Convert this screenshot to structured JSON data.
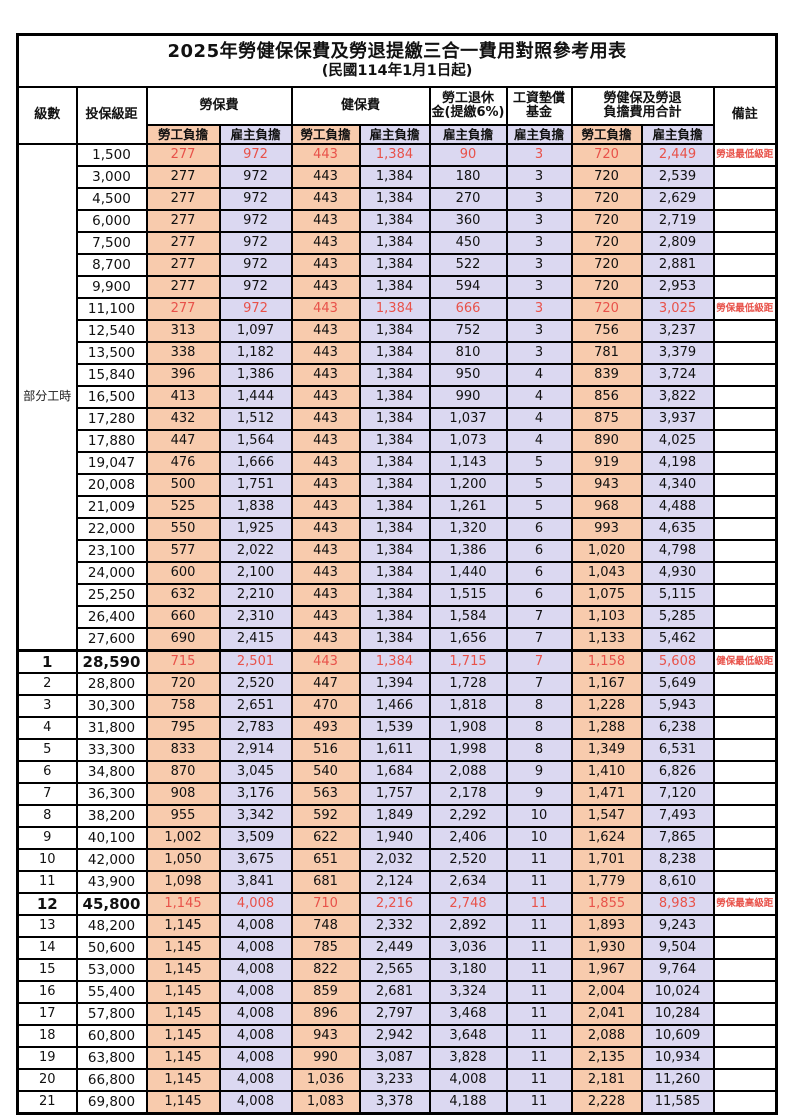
{
  "title": "2025年勞健保保費及勞退提繳三合一費用對照參考用表",
  "subtitle": "(民國114年1月1日起)",
  "columns": {
    "grade": "級數",
    "bracket": "投保級距",
    "labor": "勞保費",
    "health": "健保費",
    "pension": [
      "勞工退休",
      "金(提繳6%)"
    ],
    "fund": [
      "工資墊償",
      "基金"
    ],
    "total": [
      "勞健保及勞退",
      "負擔費用合計"
    ],
    "remark": "備註",
    "employee": "勞工負擔",
    "employer": "雇主負擔"
  },
  "part_time": {
    "label": "部分工時",
    "span": 23
  },
  "colors": {
    "employee_bg": "#F8CBAD",
    "employer_bg": "#DBD8F1",
    "highlight_text": "#E8524A",
    "border": "#000000"
  },
  "rows": [
    {
      "bracket": "1,500",
      "li_emp": "277",
      "li_er": "972",
      "hi_emp": "443",
      "hi_er": "1,384",
      "pension": "90",
      "fund": "3",
      "tot_emp": "720",
      "tot_er": "2,449",
      "remark": "勞退最低級距",
      "hl": true
    },
    {
      "bracket": "3,000",
      "li_emp": "277",
      "li_er": "972",
      "hi_emp": "443",
      "hi_er": "1,384",
      "pension": "180",
      "fund": "3",
      "tot_emp": "720",
      "tot_er": "2,539",
      "remark": ""
    },
    {
      "bracket": "4,500",
      "li_emp": "277",
      "li_er": "972",
      "hi_emp": "443",
      "hi_er": "1,384",
      "pension": "270",
      "fund": "3",
      "tot_emp": "720",
      "tot_er": "2,629",
      "remark": ""
    },
    {
      "bracket": "6,000",
      "li_emp": "277",
      "li_er": "972",
      "hi_emp": "443",
      "hi_er": "1,384",
      "pension": "360",
      "fund": "3",
      "tot_emp": "720",
      "tot_er": "2,719",
      "remark": ""
    },
    {
      "bracket": "7,500",
      "li_emp": "277",
      "li_er": "972",
      "hi_emp": "443",
      "hi_er": "1,384",
      "pension": "450",
      "fund": "3",
      "tot_emp": "720",
      "tot_er": "2,809",
      "remark": ""
    },
    {
      "bracket": "8,700",
      "li_emp": "277",
      "li_er": "972",
      "hi_emp": "443",
      "hi_er": "1,384",
      "pension": "522",
      "fund": "3",
      "tot_emp": "720",
      "tot_er": "2,881",
      "remark": ""
    },
    {
      "bracket": "9,900",
      "li_emp": "277",
      "li_er": "972",
      "hi_emp": "443",
      "hi_er": "1,384",
      "pension": "594",
      "fund": "3",
      "tot_emp": "720",
      "tot_er": "2,953",
      "remark": ""
    },
    {
      "bracket": "11,100",
      "li_emp": "277",
      "li_er": "972",
      "hi_emp": "443",
      "hi_er": "1,384",
      "pension": "666",
      "fund": "3",
      "tot_emp": "720",
      "tot_er": "3,025",
      "remark": "勞保最低級距",
      "hl": true
    },
    {
      "bracket": "12,540",
      "li_emp": "313",
      "li_er": "1,097",
      "hi_emp": "443",
      "hi_er": "1,384",
      "pension": "752",
      "fund": "3",
      "tot_emp": "756",
      "tot_er": "3,237",
      "remark": ""
    },
    {
      "bracket": "13,500",
      "li_emp": "338",
      "li_er": "1,182",
      "hi_emp": "443",
      "hi_er": "1,384",
      "pension": "810",
      "fund": "3",
      "tot_emp": "781",
      "tot_er": "3,379",
      "remark": ""
    },
    {
      "bracket": "15,840",
      "li_emp": "396",
      "li_er": "1,386",
      "hi_emp": "443",
      "hi_er": "1,384",
      "pension": "950",
      "fund": "4",
      "tot_emp": "839",
      "tot_er": "3,724",
      "remark": ""
    },
    {
      "bracket": "16,500",
      "li_emp": "413",
      "li_er": "1,444",
      "hi_emp": "443",
      "hi_er": "1,384",
      "pension": "990",
      "fund": "4",
      "tot_emp": "856",
      "tot_er": "3,822",
      "remark": ""
    },
    {
      "bracket": "17,280",
      "li_emp": "432",
      "li_er": "1,512",
      "hi_emp": "443",
      "hi_er": "1,384",
      "pension": "1,037",
      "fund": "4",
      "tot_emp": "875",
      "tot_er": "3,937",
      "remark": ""
    },
    {
      "bracket": "17,880",
      "li_emp": "447",
      "li_er": "1,564",
      "hi_emp": "443",
      "hi_er": "1,384",
      "pension": "1,073",
      "fund": "4",
      "tot_emp": "890",
      "tot_er": "4,025",
      "remark": ""
    },
    {
      "bracket": "19,047",
      "li_emp": "476",
      "li_er": "1,666",
      "hi_emp": "443",
      "hi_er": "1,384",
      "pension": "1,143",
      "fund": "5",
      "tot_emp": "919",
      "tot_er": "4,198",
      "remark": ""
    },
    {
      "bracket": "20,008",
      "li_emp": "500",
      "li_er": "1,751",
      "hi_emp": "443",
      "hi_er": "1,384",
      "pension": "1,200",
      "fund": "5",
      "tot_emp": "943",
      "tot_er": "4,340",
      "remark": ""
    },
    {
      "bracket": "21,009",
      "li_emp": "525",
      "li_er": "1,838",
      "hi_emp": "443",
      "hi_er": "1,384",
      "pension": "1,261",
      "fund": "5",
      "tot_emp": "968",
      "tot_er": "4,488",
      "remark": ""
    },
    {
      "bracket": "22,000",
      "li_emp": "550",
      "li_er": "1,925",
      "hi_emp": "443",
      "hi_er": "1,384",
      "pension": "1,320",
      "fund": "6",
      "tot_emp": "993",
      "tot_er": "4,635",
      "remark": ""
    },
    {
      "bracket": "23,100",
      "li_emp": "577",
      "li_er": "2,022",
      "hi_emp": "443",
      "hi_er": "1,384",
      "pension": "1,386",
      "fund": "6",
      "tot_emp": "1,020",
      "tot_er": "4,798",
      "remark": ""
    },
    {
      "bracket": "24,000",
      "li_emp": "600",
      "li_er": "2,100",
      "hi_emp": "443",
      "hi_er": "1,384",
      "pension": "1,440",
      "fund": "6",
      "tot_emp": "1,043",
      "tot_er": "4,930",
      "remark": ""
    },
    {
      "bracket": "25,250",
      "li_emp": "632",
      "li_er": "2,210",
      "hi_emp": "443",
      "hi_er": "1,384",
      "pension": "1,515",
      "fund": "6",
      "tot_emp": "1,075",
      "tot_er": "5,115",
      "remark": ""
    },
    {
      "bracket": "26,400",
      "li_emp": "660",
      "li_er": "2,310",
      "hi_emp": "443",
      "hi_er": "1,384",
      "pension": "1,584",
      "fund": "7",
      "tot_emp": "1,103",
      "tot_er": "5,285",
      "remark": ""
    },
    {
      "bracket": "27,600",
      "li_emp": "690",
      "li_er": "2,415",
      "hi_emp": "443",
      "hi_er": "1,384",
      "pension": "1,656",
      "fund": "7",
      "tot_emp": "1,133",
      "tot_er": "5,462",
      "remark": ""
    },
    {
      "grade": "1",
      "bracket": "28,590",
      "li_emp": "715",
      "li_er": "2,501",
      "hi_emp": "443",
      "hi_er": "1,384",
      "pension": "1,715",
      "fund": "7",
      "tot_emp": "1,158",
      "tot_er": "5,608",
      "remark": "健保最低級距",
      "hl": true,
      "bold": true,
      "section": true
    },
    {
      "grade": "2",
      "bracket": "28,800",
      "li_emp": "720",
      "li_er": "2,520",
      "hi_emp": "447",
      "hi_er": "1,394",
      "pension": "1,728",
      "fund": "7",
      "tot_emp": "1,167",
      "tot_er": "5,649",
      "remark": ""
    },
    {
      "grade": "3",
      "bracket": "30,300",
      "li_emp": "758",
      "li_er": "2,651",
      "hi_emp": "470",
      "hi_er": "1,466",
      "pension": "1,818",
      "fund": "8",
      "tot_emp": "1,228",
      "tot_er": "5,943",
      "remark": ""
    },
    {
      "grade": "4",
      "bracket": "31,800",
      "li_emp": "795",
      "li_er": "2,783",
      "hi_emp": "493",
      "hi_er": "1,539",
      "pension": "1,908",
      "fund": "8",
      "tot_emp": "1,288",
      "tot_er": "6,238",
      "remark": ""
    },
    {
      "grade": "5",
      "bracket": "33,300",
      "li_emp": "833",
      "li_er": "2,914",
      "hi_emp": "516",
      "hi_er": "1,611",
      "pension": "1,998",
      "fund": "8",
      "tot_emp": "1,349",
      "tot_er": "6,531",
      "remark": ""
    },
    {
      "grade": "6",
      "bracket": "34,800",
      "li_emp": "870",
      "li_er": "3,045",
      "hi_emp": "540",
      "hi_er": "1,684",
      "pension": "2,088",
      "fund": "9",
      "tot_emp": "1,410",
      "tot_er": "6,826",
      "remark": ""
    },
    {
      "grade": "7",
      "bracket": "36,300",
      "li_emp": "908",
      "li_er": "3,176",
      "hi_emp": "563",
      "hi_er": "1,757",
      "pension": "2,178",
      "fund": "9",
      "tot_emp": "1,471",
      "tot_er": "7,120",
      "remark": ""
    },
    {
      "grade": "8",
      "bracket": "38,200",
      "li_emp": "955",
      "li_er": "3,342",
      "hi_emp": "592",
      "hi_er": "1,849",
      "pension": "2,292",
      "fund": "10",
      "tot_emp": "1,547",
      "tot_er": "7,493",
      "remark": ""
    },
    {
      "grade": "9",
      "bracket": "40,100",
      "li_emp": "1,002",
      "li_er": "3,509",
      "hi_emp": "622",
      "hi_er": "1,940",
      "pension": "2,406",
      "fund": "10",
      "tot_emp": "1,624",
      "tot_er": "7,865",
      "remark": ""
    },
    {
      "grade": "10",
      "bracket": "42,000",
      "li_emp": "1,050",
      "li_er": "3,675",
      "hi_emp": "651",
      "hi_er": "2,032",
      "pension": "2,520",
      "fund": "11",
      "tot_emp": "1,701",
      "tot_er": "8,238",
      "remark": ""
    },
    {
      "grade": "11",
      "bracket": "43,900",
      "li_emp": "1,098",
      "li_er": "3,841",
      "hi_emp": "681",
      "hi_er": "2,124",
      "pension": "2,634",
      "fund": "11",
      "tot_emp": "1,779",
      "tot_er": "8,610",
      "remark": ""
    },
    {
      "grade": "12",
      "bracket": "45,800",
      "li_emp": "1,145",
      "li_er": "4,008",
      "hi_emp": "710",
      "hi_er": "2,216",
      "pension": "2,748",
      "fund": "11",
      "tot_emp": "1,855",
      "tot_er": "8,983",
      "remark": "勞保最高級距",
      "hl": true,
      "bold": true
    },
    {
      "grade": "13",
      "bracket": "48,200",
      "li_emp": "1,145",
      "li_er": "4,008",
      "hi_emp": "748",
      "hi_er": "2,332",
      "pension": "2,892",
      "fund": "11",
      "tot_emp": "1,893",
      "tot_er": "9,243",
      "remark": ""
    },
    {
      "grade": "14",
      "bracket": "50,600",
      "li_emp": "1,145",
      "li_er": "4,008",
      "hi_emp": "785",
      "hi_er": "2,449",
      "pension": "3,036",
      "fund": "11",
      "tot_emp": "1,930",
      "tot_er": "9,504",
      "remark": ""
    },
    {
      "grade": "15",
      "bracket": "53,000",
      "li_emp": "1,145",
      "li_er": "4,008",
      "hi_emp": "822",
      "hi_er": "2,565",
      "pension": "3,180",
      "fund": "11",
      "tot_emp": "1,967",
      "tot_er": "9,764",
      "remark": ""
    },
    {
      "grade": "16",
      "bracket": "55,400",
      "li_emp": "1,145",
      "li_er": "4,008",
      "hi_emp": "859",
      "hi_er": "2,681",
      "pension": "3,324",
      "fund": "11",
      "tot_emp": "2,004",
      "tot_er": "10,024",
      "remark": ""
    },
    {
      "grade": "17",
      "bracket": "57,800",
      "li_emp": "1,145",
      "li_er": "4,008",
      "hi_emp": "896",
      "hi_er": "2,797",
      "pension": "3,468",
      "fund": "11",
      "tot_emp": "2,041",
      "tot_er": "10,284",
      "remark": ""
    },
    {
      "grade": "18",
      "bracket": "60,800",
      "li_emp": "1,145",
      "li_er": "4,008",
      "hi_emp": "943",
      "hi_er": "2,942",
      "pension": "3,648",
      "fund": "11",
      "tot_emp": "2,088",
      "tot_er": "10,609",
      "remark": ""
    },
    {
      "grade": "19",
      "bracket": "63,800",
      "li_emp": "1,145",
      "li_er": "4,008",
      "hi_emp": "990",
      "hi_er": "3,087",
      "pension": "3,828",
      "fund": "11",
      "tot_emp": "2,135",
      "tot_er": "10,934",
      "remark": ""
    },
    {
      "grade": "20",
      "bracket": "66,800",
      "li_emp": "1,145",
      "li_er": "4,008",
      "hi_emp": "1,036",
      "hi_er": "3,233",
      "pension": "4,008",
      "fund": "11",
      "tot_emp": "2,181",
      "tot_er": "11,260",
      "remark": ""
    },
    {
      "grade": "21",
      "bracket": "69,800",
      "li_emp": "1,145",
      "li_er": "4,008",
      "hi_emp": "1,083",
      "hi_er": "3,378",
      "pension": "4,188",
      "fund": "11",
      "tot_emp": "2,228",
      "tot_er": "11,585",
      "remark": ""
    }
  ]
}
